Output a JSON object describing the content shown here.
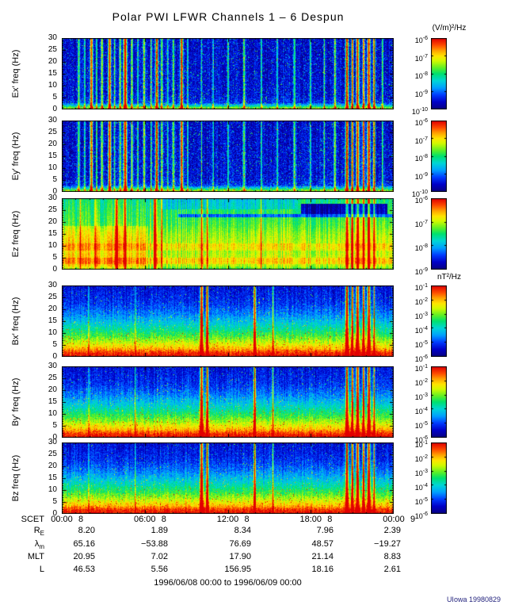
{
  "credit": "UIowa 19980829",
  "chart_data": {
    "type": "heatmap",
    "title": "Polar PWI LFWR Channels 1 – 6 Despun",
    "caption": "1996/06/08 00:00 to 1996/06/09 00:00",
    "time_start": "1996/06/08 00:00",
    "time_end": "1996/06/09 00:00",
    "units": {
      "electric": "(V/m)²/Hz",
      "magnetic": "nT²/Hz"
    },
    "y_axis": {
      "min": 0,
      "max": 30,
      "ticks": [
        30,
        25,
        20,
        15,
        10,
        5,
        0
      ]
    },
    "x_axis": {
      "scet_label": "SCET",
      "ticks": [
        {
          "time": "00:00",
          "day": "8"
        },
        {
          "time": "06:00",
          "day": "8"
        },
        {
          "time": "12:00",
          "day": "8"
        },
        {
          "time": "18:00",
          "day": "8"
        },
        {
          "time": "00:00",
          "day": "9"
        }
      ]
    },
    "ephemeris": {
      "rows": [
        {
          "label": "R",
          "sub": "E",
          "values": [
            "8.20",
            "1.89",
            "8.34",
            "7.96",
            "2.39"
          ]
        },
        {
          "label": "λ",
          "sub": "m",
          "values": [
            "65.16",
            "−53.88",
            "76.69",
            "48.57",
            "−19.27"
          ]
        },
        {
          "label": "MLT",
          "sub": "",
          "values": [
            "20.95",
            "7.02",
            "17.90",
            "21.14",
            "8.83"
          ]
        },
        {
          "label": "L",
          "sub": "",
          "values": [
            "46.53",
            "5.56",
            "156.95",
            "18.16",
            "2.61"
          ]
        }
      ]
    },
    "streak_sets": {
      "e": [
        [
          0.05,
          0.003,
          0.5
        ],
        [
          0.068,
          0.002,
          0.45
        ],
        [
          0.088,
          0.004,
          0.85
        ],
        [
          0.104,
          0.002,
          0.5
        ],
        [
          0.12,
          0.003,
          0.6
        ],
        [
          0.143,
          0.004,
          0.9
        ],
        [
          0.158,
          0.002,
          0.5
        ],
        [
          0.175,
          0.003,
          0.55
        ],
        [
          0.19,
          0.005,
          0.95
        ],
        [
          0.21,
          0.003,
          0.55
        ],
        [
          0.228,
          0.002,
          0.45
        ],
        [
          0.247,
          0.003,
          0.6
        ],
        [
          0.268,
          0.002,
          0.5
        ],
        [
          0.285,
          0.004,
          0.88
        ],
        [
          0.3,
          0.003,
          0.55
        ],
        [
          0.318,
          0.002,
          0.45
        ],
        [
          0.335,
          0.003,
          0.5
        ],
        [
          0.36,
          0.004,
          0.9
        ],
        [
          0.378,
          0.002,
          0.45
        ],
        [
          0.42,
          0.002,
          0.4
        ],
        [
          0.455,
          0.002,
          0.38
        ],
        [
          0.5,
          0.002,
          0.42
        ],
        [
          0.548,
          0.003,
          0.5
        ],
        [
          0.6,
          0.002,
          0.4
        ],
        [
          0.648,
          0.002,
          0.38
        ],
        [
          0.7,
          0.003,
          0.45
        ],
        [
          0.748,
          0.002,
          0.4
        ],
        [
          0.79,
          0.002,
          0.45
        ],
        [
          0.822,
          0.003,
          0.55
        ],
        [
          0.858,
          0.004,
          0.95
        ],
        [
          0.874,
          0.003,
          0.9
        ],
        [
          0.89,
          0.004,
          0.95
        ],
        [
          0.908,
          0.003,
          0.88
        ],
        [
          0.924,
          0.004,
          0.95
        ],
        [
          0.94,
          0.003,
          0.85
        ],
        [
          0.965,
          0.002,
          0.55
        ]
      ],
      "ez": [
        [
          0.055,
          0.002,
          0.3
        ],
        [
          0.1,
          0.002,
          0.3
        ],
        [
          0.165,
          0.004,
          0.55
        ],
        [
          0.19,
          0.003,
          0.5
        ],
        [
          0.28,
          0.004,
          0.6
        ],
        [
          0.3,
          0.002,
          0.4
        ],
        [
          0.42,
          0.003,
          0.45
        ],
        [
          0.437,
          0.002,
          0.4
        ],
        [
          0.6,
          0.002,
          0.35
        ],
        [
          0.858,
          0.004,
          0.55
        ],
        [
          0.874,
          0.003,
          0.5
        ],
        [
          0.89,
          0.004,
          0.55
        ],
        [
          0.908,
          0.003,
          0.5
        ],
        [
          0.924,
          0.004,
          0.55
        ],
        [
          0.94,
          0.003,
          0.5
        ]
      ],
      "b": [
        [
          0.08,
          0.0015,
          0.35
        ],
        [
          0.22,
          0.0015,
          0.3
        ],
        [
          0.42,
          0.004,
          0.9
        ],
        [
          0.437,
          0.003,
          0.85
        ],
        [
          0.58,
          0.003,
          0.8
        ],
        [
          0.635,
          0.002,
          0.45
        ],
        [
          0.858,
          0.004,
          0.9
        ],
        [
          0.874,
          0.003,
          0.85
        ],
        [
          0.89,
          0.004,
          0.9
        ],
        [
          0.908,
          0.003,
          0.85
        ],
        [
          0.924,
          0.004,
          0.9
        ],
        [
          0.94,
          0.002,
          0.8
        ]
      ]
    },
    "panels": [
      {
        "id": "ex",
        "ylabel": "Ex′ freq (Hz)",
        "seed": 11,
        "profile": [
          [
            0,
            0.66
          ],
          [
            0.03,
            0.6
          ],
          [
            0.06,
            0.38
          ],
          [
            0.1,
            0.17
          ],
          [
            0.2,
            0.12
          ],
          [
            1,
            0.1
          ]
        ],
        "noise": 0.22,
        "speckle": 0.035,
        "col_noise": 0.05,
        "streaks": "e",
        "patches": [],
        "colorbar": [
          "-6",
          "-7",
          "-8",
          "-9",
          "-10"
        ]
      },
      {
        "id": "ey",
        "ylabel": "Ey′ freq (Hz)",
        "seed": 22,
        "profile": [
          [
            0,
            0.66
          ],
          [
            0.03,
            0.6
          ],
          [
            0.06,
            0.38
          ],
          [
            0.1,
            0.17
          ],
          [
            0.2,
            0.12
          ],
          [
            1,
            0.1
          ]
        ],
        "noise": 0.22,
        "speckle": 0.035,
        "col_noise": 0.05,
        "streaks": "e",
        "patches": [],
        "colorbar": [
          "-6",
          "-7",
          "-8",
          "-9",
          "-10"
        ]
      },
      {
        "id": "ez",
        "ylabel": "Ez freq (Hz)",
        "seed": 33,
        "profile": [
          [
            0,
            0.52
          ],
          [
            0.06,
            0.66
          ],
          [
            0.12,
            0.7
          ],
          [
            0.25,
            0.65
          ],
          [
            0.35,
            0.68
          ],
          [
            0.5,
            0.63
          ],
          [
            0.65,
            0.55
          ],
          [
            0.8,
            0.52
          ],
          [
            1,
            0.47
          ]
        ],
        "noise": 0.1,
        "speckle": 0.0,
        "col_noise": 0.1,
        "streaks": "ez",
        "patches": [
          {
            "t0": 0,
            "t1": 0.26,
            "f0": 0.02,
            "f1": 0.62,
            "dv": 0.09
          },
          {
            "t0": 0,
            "t1": 1,
            "f0": 0.08,
            "f1": 0.17,
            "dv": 0.07
          },
          {
            "t0": 0,
            "t1": 1,
            "f0": 0.27,
            "f1": 0.37,
            "dv": 0.06
          },
          {
            "t0": 0.35,
            "t1": 1,
            "f0": 0.74,
            "f1": 0.78,
            "dv": -0.3
          },
          {
            "t0": 0.72,
            "t1": 0.98,
            "f0": 0.78,
            "f1": 0.93,
            "dv": -0.45
          },
          {
            "t0": 0.3,
            "t1": 0.7,
            "f0": 0.85,
            "f1": 1,
            "dv": -0.1
          }
        ],
        "colorbar": [
          "-6",
          "-7",
          "-8",
          "-9"
        ]
      },
      {
        "id": "bx",
        "ylabel": "Bx′ freq (Hz)",
        "seed": 44,
        "profile": [
          [
            0,
            1.0
          ],
          [
            0.06,
            0.95
          ],
          [
            0.12,
            0.8
          ],
          [
            0.2,
            0.68
          ],
          [
            0.3,
            0.55
          ],
          [
            0.45,
            0.4
          ],
          [
            0.6,
            0.27
          ],
          [
            0.75,
            0.18
          ],
          [
            1,
            0.12
          ]
        ],
        "noise": 0.16,
        "speckle": 0.02,
        "col_noise": 0.05,
        "streaks": "b",
        "patches": [],
        "colorbar": [
          "-1",
          "-2",
          "-3",
          "-4",
          "-5",
          "-6"
        ]
      },
      {
        "id": "by",
        "ylabel": "By′ freq (Hz)",
        "seed": 55,
        "profile": [
          [
            0,
            1.0
          ],
          [
            0.06,
            0.95
          ],
          [
            0.12,
            0.8
          ],
          [
            0.2,
            0.68
          ],
          [
            0.3,
            0.55
          ],
          [
            0.45,
            0.4
          ],
          [
            0.6,
            0.27
          ],
          [
            0.75,
            0.18
          ],
          [
            1,
            0.12
          ]
        ],
        "noise": 0.16,
        "speckle": 0.02,
        "col_noise": 0.05,
        "streaks": "b",
        "patches": [],
        "colorbar": [
          "-1",
          "-2",
          "-3",
          "-4",
          "-5",
          "-6"
        ]
      },
      {
        "id": "bz",
        "ylabel": "Bz freq (Hz)",
        "seed": 66,
        "profile": [
          [
            0,
            1.0
          ],
          [
            0.06,
            0.95
          ],
          [
            0.12,
            0.8
          ],
          [
            0.2,
            0.68
          ],
          [
            0.3,
            0.55
          ],
          [
            0.45,
            0.4
          ],
          [
            0.6,
            0.27
          ],
          [
            0.75,
            0.18
          ],
          [
            1,
            0.12
          ]
        ],
        "noise": 0.16,
        "speckle": 0.02,
        "col_noise": 0.05,
        "streaks": "b",
        "patches": [],
        "colorbar": [
          "-1",
          "-2",
          "-3",
          "-4",
          "-5",
          "-6"
        ]
      }
    ]
  }
}
